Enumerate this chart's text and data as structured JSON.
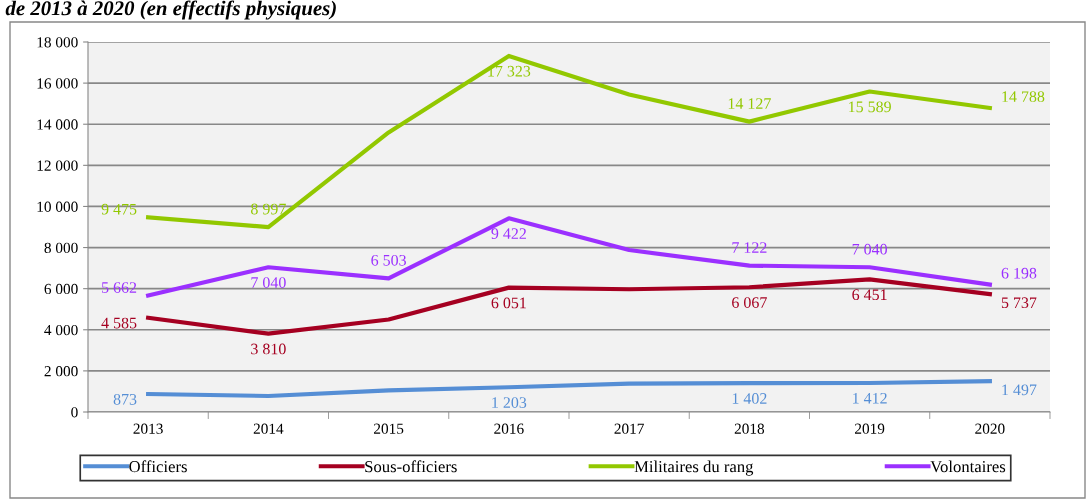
{
  "chart_data": {
    "type": "line",
    "title": "de 2013 à 2020 (en effectifs physiques)",
    "categories": [
      "2013",
      "2014",
      "2015",
      "2016",
      "2017",
      "2018",
      "2019",
      "2020"
    ],
    "series": [
      {
        "name": "Officiers",
        "color": "#558ed5",
        "values": [
          873,
          780,
          1050,
          1203,
          1380,
          1402,
          1412,
          1497
        ],
        "value_labels": [
          "873",
          null,
          null,
          "1 203",
          null,
          "1 402",
          "1 412",
          "1 497"
        ]
      },
      {
        "name": "Sous-officiers",
        "color": "#a50021",
        "values": [
          4585,
          3810,
          4500,
          6051,
          5970,
          6067,
          6451,
          5737
        ],
        "value_labels": [
          "4 585",
          "3 810",
          null,
          "6 051",
          null,
          "6 067",
          "6 451",
          "5 737"
        ]
      },
      {
        "name": "Militaires du rang",
        "color": "#92c800",
        "values": [
          9475,
          8997,
          13600,
          17323,
          15450,
          14127,
          15589,
          14788
        ],
        "value_labels": [
          "9 475",
          "8 997",
          null,
          "17 323",
          null,
          "14 127",
          "15 589",
          "14 788"
        ]
      },
      {
        "name": "Volontaires",
        "color": "#9b30ff",
        "values": [
          5662,
          7040,
          6503,
          9422,
          7880,
          7122,
          7040,
          6198
        ],
        "value_labels": [
          "5 662",
          "7 040",
          "6 503",
          "9 422",
          null,
          "7 122",
          "7 040",
          "6 198"
        ]
      }
    ],
    "ylim": [
      0,
      18000
    ],
    "yticks": [
      {
        "value": 0,
        "label": "0"
      },
      {
        "value": 2000,
        "label": "2 000"
      },
      {
        "value": 4000,
        "label": "4 000"
      },
      {
        "value": 6000,
        "label": "6 000"
      },
      {
        "value": 8000,
        "label": "8 000"
      },
      {
        "value": 10000,
        "label": "10 000"
      },
      {
        "value": 12000,
        "label": "12 000"
      },
      {
        "value": 14000,
        "label": "14 000"
      },
      {
        "value": 16000,
        "label": "16 000"
      },
      {
        "value": 18000,
        "label": "18 000"
      }
    ],
    "grid": "y",
    "legend": "bottom",
    "marker": "none",
    "line_style": "solid"
  }
}
